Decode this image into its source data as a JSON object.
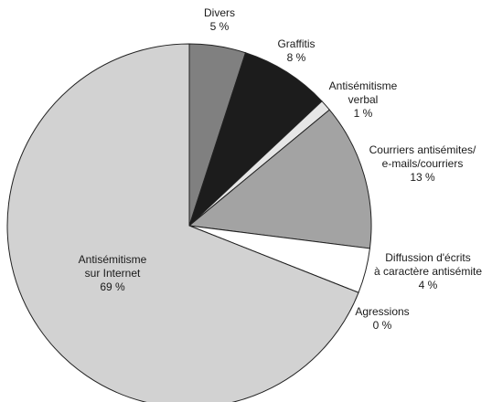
{
  "chart_data": {
    "type": "pie",
    "start_angle_deg": 0,
    "direction": "clockwise",
    "slices": [
      {
        "label_lines": [
          "Divers",
          "5 %"
        ],
        "value": 5,
        "color": "#808080"
      },
      {
        "label_lines": [
          "Graffitis",
          "8 %"
        ],
        "value": 8,
        "color": "#1c1c1c"
      },
      {
        "label_lines": [
          "Antisémitisme",
          "verbal",
          "1 %"
        ],
        "value": 1,
        "color": "#e6e6e6"
      },
      {
        "label_lines": [
          "Courriers antisémites/",
          "e-mails/courriers",
          "13 %"
        ],
        "value": 13,
        "color": "#a3a3a3"
      },
      {
        "label_lines": [
          "Diffussion d'écrits",
          "à caractère antisémite",
          "4 %"
        ],
        "value": 4,
        "color": "#ffffff"
      },
      {
        "label_lines": [
          "Agressions",
          "0 %"
        ],
        "value": 0,
        "color": "#ffffff"
      },
      {
        "label_lines": [
          "Antisémitisme",
          "sur Internet",
          "69 %"
        ],
        "value": 69,
        "color": "#d2d2d2"
      }
    ]
  }
}
